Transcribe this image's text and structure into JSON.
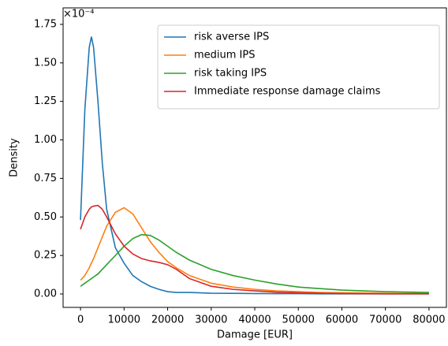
{
  "chart_data": {
    "type": "line",
    "x_label": "Damage [EUR]",
    "y_label": "Density",
    "y_offset_label": "×10⁻⁴",
    "x": [
      0,
      1000,
      2000,
      2500,
      3000,
      4000,
      5000,
      6000,
      8000,
      10000,
      12000,
      14000,
      16000,
      18000,
      20000,
      22000,
      25000,
      30000,
      35000,
      40000,
      45000,
      50000,
      55000,
      60000,
      70000,
      80000
    ],
    "series": [
      {
        "name": "risk averse IPS",
        "color": "#1f77b4",
        "values": [
          0.48,
          1.2,
          1.6,
          1.67,
          1.6,
          1.25,
          0.85,
          0.55,
          0.3,
          0.2,
          0.12,
          0.08,
          0.05,
          0.03,
          0.015,
          0.01,
          0.01,
          0.005,
          0.004,
          0.003,
          0.002,
          0.002,
          0.001,
          0.001,
          0.001,
          0.001
        ]
      },
      {
        "name": "medium IPS",
        "color": "#ff7f0e",
        "values": [
          0.09,
          0.12,
          0.17,
          0.2,
          0.23,
          0.3,
          0.37,
          0.44,
          0.53,
          0.56,
          0.52,
          0.43,
          0.34,
          0.27,
          0.21,
          0.17,
          0.12,
          0.07,
          0.045,
          0.03,
          0.02,
          0.015,
          0.01,
          0.008,
          0.005,
          0.003
        ]
      },
      {
        "name": "risk taking IPS",
        "color": "#2ca02c",
        "values": [
          0.05,
          0.07,
          0.09,
          0.1,
          0.11,
          0.13,
          0.16,
          0.19,
          0.25,
          0.31,
          0.36,
          0.385,
          0.38,
          0.35,
          0.31,
          0.27,
          0.22,
          0.16,
          0.12,
          0.09,
          0.065,
          0.045,
          0.035,
          0.025,
          0.015,
          0.01
        ]
      },
      {
        "name": "Immediate response damage claims",
        "color": "#d62728",
        "values": [
          0.42,
          0.5,
          0.55,
          0.565,
          0.57,
          0.575,
          0.55,
          0.5,
          0.39,
          0.31,
          0.26,
          0.23,
          0.215,
          0.205,
          0.19,
          0.16,
          0.1,
          0.05,
          0.03,
          0.02,
          0.012,
          0.008,
          0.005,
          0.003,
          0.001,
          0.001
        ]
      }
    ],
    "xlim": [
      -4000,
      84000
    ],
    "ylim": [
      -0.087,
      1.857
    ],
    "xticks": [
      0,
      10000,
      20000,
      30000,
      40000,
      50000,
      60000,
      70000,
      80000
    ],
    "yticks": [
      {
        "value": 0,
        "label": "0.00"
      },
      0.25,
      {
        "value": 0.5,
        "label": "0.50"
      },
      0.75,
      {
        "value": 1,
        "label": "1.00"
      },
      1.25,
      {
        "value": 1.5,
        "label": "1.50"
      },
      1.75
    ],
    "legend": "upper right",
    "grid": false
  }
}
